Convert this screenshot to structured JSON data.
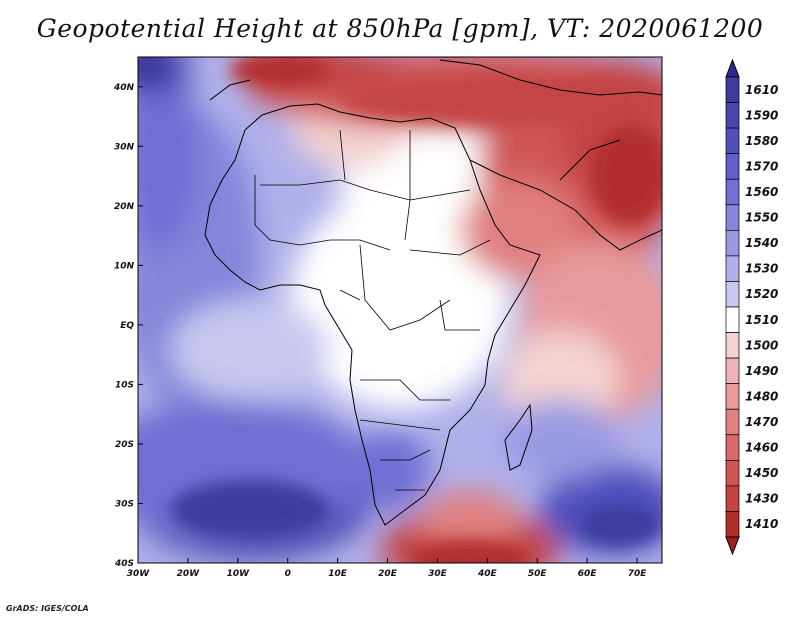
{
  "title": "Geopotential Height at 850hPa [gpm], VT: 2020061200",
  "credit": "GrADS: IGES/COLA",
  "map": {
    "lon_range": [
      -30,
      75
    ],
    "lat_range": [
      -40,
      45
    ],
    "lon_ticks": [
      {
        "lon": -30,
        "label": "30W"
      },
      {
        "lon": -20,
        "label": "20W"
      },
      {
        "lon": -10,
        "label": "10W"
      },
      {
        "lon": 0,
        "label": "0"
      },
      {
        "lon": 10,
        "label": "10E"
      },
      {
        "lon": 20,
        "label": "20E"
      },
      {
        "lon": 30,
        "label": "30E"
      },
      {
        "lon": 40,
        "label": "40E"
      },
      {
        "lon": 50,
        "label": "50E"
      },
      {
        "lon": 60,
        "label": "60E"
      },
      {
        "lon": 70,
        "label": "70E"
      }
    ],
    "lat_ticks": [
      {
        "lat": 40,
        "label": "40N"
      },
      {
        "lat": 30,
        "label": "30N"
      },
      {
        "lat": 20,
        "label": "20N"
      },
      {
        "lat": 10,
        "label": "10N"
      },
      {
        "lat": 0,
        "label": "EQ"
      },
      {
        "lat": -10,
        "label": "10S"
      },
      {
        "lat": -20,
        "label": "20S"
      },
      {
        "lat": -30,
        "label": "30S"
      },
      {
        "lat": -40,
        "label": "40S"
      }
    ]
  },
  "colorbar": {
    "levels": [
      {
        "label": "1610",
        "color": "#3c3c9c"
      },
      {
        "label": "1590",
        "color": "#4646ad"
      },
      {
        "label": "1580",
        "color": "#5050bd"
      },
      {
        "label": "1570",
        "color": "#5f5fcc"
      },
      {
        "label": "1560",
        "color": "#7070d4"
      },
      {
        "label": "1550",
        "color": "#8585dc"
      },
      {
        "label": "1540",
        "color": "#9a9ae3"
      },
      {
        "label": "1530",
        "color": "#b0b0ea"
      },
      {
        "label": "1520",
        "color": "#c8c8f1"
      },
      {
        "label": "1510",
        "color": "#ffffff"
      },
      {
        "label": "1500",
        "color": "#f4d2d2"
      },
      {
        "label": "1490",
        "color": "#eeb4b4"
      },
      {
        "label": "1480",
        "color": "#e89a9a"
      },
      {
        "label": "1470",
        "color": "#e08080"
      },
      {
        "label": "1460",
        "color": "#da6a6a"
      },
      {
        "label": "1450",
        "color": "#d05656"
      },
      {
        "label": "1430",
        "color": "#c44444"
      },
      {
        "label": "1410",
        "color": "#b22e2e"
      }
    ],
    "top_arrow_color": "#2a2a8c",
    "bottom_arrow_color": "#a02020"
  }
}
